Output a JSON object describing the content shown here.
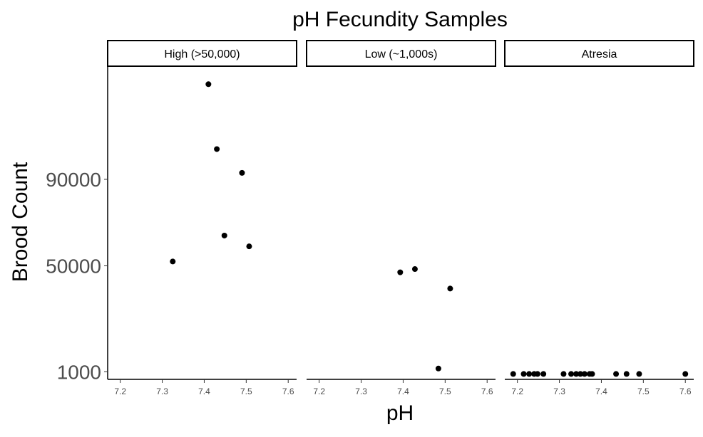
{
  "chart_data": {
    "type": "scatter",
    "title": "pH Fecundity Samples",
    "xlabel": "pH",
    "ylabel": "Brood Count",
    "x_ticks": [
      7.2,
      7.3,
      7.4,
      7.5,
      7.6
    ],
    "x_tick_labels": [
      "7.2",
      "7.3",
      "7.4",
      "7.5",
      "7.6"
    ],
    "y_ticks": [
      1000,
      50000,
      90000
    ],
    "y_tick_labels": [
      "1000",
      "50000",
      "90000"
    ],
    "xlim": [
      7.17,
      7.62
    ],
    "ylim": [
      -2500,
      142000
    ],
    "grid": false,
    "point_color": "#000000",
    "panels": [
      {
        "label": "High (>50,000)",
        "points": [
          {
            "x": 7.325,
            "y": 52000
          },
          {
            "x": 7.41,
            "y": 134000
          },
          {
            "x": 7.43,
            "y": 104000
          },
          {
            "x": 7.448,
            "y": 64000
          },
          {
            "x": 7.49,
            "y": 93000
          },
          {
            "x": 7.507,
            "y": 59000
          }
        ]
      },
      {
        "label": "Low (~1,000s)",
        "points": [
          {
            "x": 7.393,
            "y": 47000
          },
          {
            "x": 7.428,
            "y": 48500
          },
          {
            "x": 7.512,
            "y": 39500
          },
          {
            "x": 7.484,
            "y": 2500
          }
        ]
      },
      {
        "label": "Atresia",
        "points": [
          {
            "x": 7.19,
            "y": 0
          },
          {
            "x": 7.215,
            "y": 0
          },
          {
            "x": 7.228,
            "y": 0
          },
          {
            "x": 7.24,
            "y": 0
          },
          {
            "x": 7.248,
            "y": 0
          },
          {
            "x": 7.262,
            "y": 0
          },
          {
            "x": 7.31,
            "y": 0
          },
          {
            "x": 7.328,
            "y": 0
          },
          {
            "x": 7.34,
            "y": 0
          },
          {
            "x": 7.35,
            "y": 0
          },
          {
            "x": 7.36,
            "y": 0
          },
          {
            "x": 7.372,
            "y": 0
          },
          {
            "x": 7.378,
            "y": 0
          },
          {
            "x": 7.435,
            "y": 0
          },
          {
            "x": 7.46,
            "y": 0
          },
          {
            "x": 7.49,
            "y": 0
          },
          {
            "x": 7.6,
            "y": 0
          }
        ]
      }
    ]
  }
}
